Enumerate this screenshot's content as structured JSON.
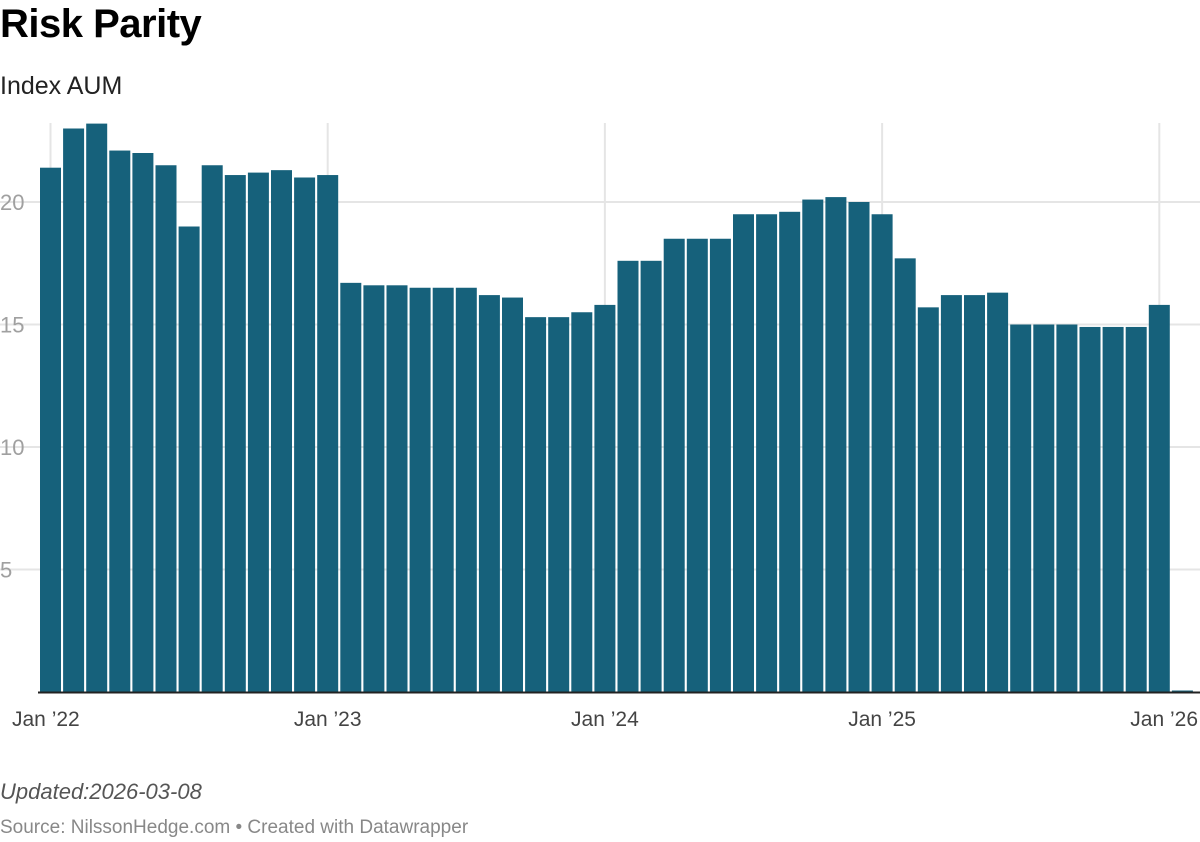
{
  "title": "Risk Parity",
  "subtitle": "Index AUM",
  "footer": {
    "updated": "Updated:2026-03-08",
    "source": "Source: NilssonHedge.com • Created with Datawrapper"
  },
  "colors": {
    "bar": "#16617b",
    "grid": "#e5e5e5",
    "baseline": "#222222"
  },
  "chart_data": {
    "type": "bar",
    "title": "Risk Parity",
    "subtitle": "Index AUM",
    "xlabel": "",
    "ylabel": "",
    "ylim": [
      0,
      23.2
    ],
    "grid": true,
    "y_ticks": [
      5,
      10,
      15,
      20
    ],
    "x_ticks": [
      {
        "date": "2022-01",
        "label": "Jan ’22"
      },
      {
        "date": "2023-01",
        "label": "Jan ’23"
      },
      {
        "date": "2024-01",
        "label": "Jan ’24"
      },
      {
        "date": "2025-01",
        "label": "Jan ’25"
      },
      {
        "date": "2026-01",
        "label": "Jan ’26"
      }
    ],
    "categories": [
      "2022-01",
      "2022-02",
      "2022-03",
      "2022-04",
      "2022-05",
      "2022-06",
      "2022-07",
      "2022-08",
      "2022-09",
      "2022-10",
      "2022-11",
      "2022-12",
      "2023-01",
      "2023-02",
      "2023-03",
      "2023-04",
      "2023-05",
      "2023-06",
      "2023-07",
      "2023-08",
      "2023-09",
      "2023-10",
      "2023-11",
      "2023-12",
      "2024-01",
      "2024-02",
      "2024-03",
      "2024-04",
      "2024-05",
      "2024-06",
      "2024-07",
      "2024-08",
      "2024-09",
      "2024-10",
      "2024-11",
      "2024-12",
      "2025-01",
      "2025-02",
      "2025-03",
      "2025-04",
      "2025-05",
      "2025-06",
      "2025-07",
      "2025-08",
      "2025-09",
      "2025-10",
      "2025-11",
      "2025-12",
      "2026-01",
      "2026-02"
    ],
    "values": [
      21.4,
      23.0,
      23.2,
      22.1,
      22.0,
      21.5,
      19.0,
      21.5,
      21.1,
      21.2,
      21.3,
      21.0,
      21.1,
      16.7,
      16.6,
      16.6,
      16.5,
      16.5,
      16.5,
      16.2,
      16.1,
      15.3,
      15.3,
      15.5,
      15.8,
      17.6,
      17.6,
      18.5,
      18.5,
      18.5,
      19.5,
      19.5,
      19.6,
      20.1,
      20.2,
      20.0,
      19.5,
      17.7,
      15.7,
      16.2,
      16.2,
      16.3,
      15.0,
      15.0,
      15.0,
      14.9,
      14.9,
      14.9,
      15.8,
      0.05
    ]
  }
}
